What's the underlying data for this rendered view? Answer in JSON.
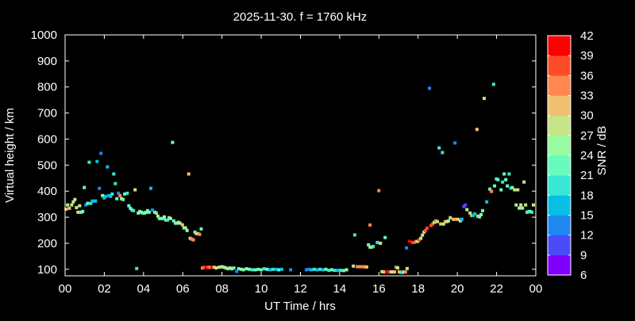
{
  "chart_data": {
    "type": "scatter",
    "title": "2025-11-30. f = 1760 kHz",
    "xlabel": "UT Time / hrs",
    "ylabel": "Virtual height / km",
    "xlim": [
      0,
      24
    ],
    "ylim": [
      75,
      1000
    ],
    "x_ticks": [
      "00",
      "02",
      "04",
      "06",
      "08",
      "10",
      "12",
      "14",
      "16",
      "18",
      "20",
      "22",
      "00"
    ],
    "x_tick_values": [
      0,
      2,
      4,
      6,
      8,
      10,
      12,
      14,
      16,
      18,
      20,
      22,
      24
    ],
    "y_ticks": [
      100,
      200,
      300,
      400,
      500,
      600,
      700,
      800,
      900,
      1000
    ],
    "grid": false,
    "background": "#000000",
    "colorbar": {
      "label": "SNR / dB",
      "ticks": [
        6,
        9,
        12,
        15,
        18,
        21,
        24,
        27,
        30,
        33,
        36,
        39,
        42
      ],
      "colors": [
        "#7f00ff",
        "#4b4bfa",
        "#1e88f0",
        "#08c0e4",
        "#38e8d4",
        "#68fcbc",
        "#98fca0",
        "#c8e488",
        "#f0c070",
        "#ff8850",
        "#ff4c28",
        "#ff0000"
      ]
    },
    "point_fields": [
      "time_hrs",
      "height_km",
      "snr_db"
    ],
    "points": [
      [
        0.05,
        331,
        31
      ],
      [
        0.13,
        347,
        28
      ],
      [
        0.22,
        334,
        31
      ],
      [
        0.34,
        347,
        28
      ],
      [
        0.42,
        359,
        27
      ],
      [
        0.5,
        368,
        28
      ],
      [
        0.58,
        337,
        27
      ],
      [
        0.66,
        319,
        28
      ],
      [
        0.74,
        344,
        27
      ],
      [
        0.82,
        319,
        24
      ],
      [
        0.9,
        322,
        22
      ],
      [
        0.98,
        414,
        21
      ],
      [
        1.06,
        347,
        12
      ],
      [
        1.15,
        353,
        21
      ],
      [
        1.23,
        511,
        20
      ],
      [
        1.31,
        353,
        19
      ],
      [
        1.39,
        362,
        17
      ],
      [
        1.47,
        362,
        17
      ],
      [
        1.55,
        362,
        17
      ],
      [
        1.63,
        514,
        16
      ],
      [
        1.75,
        411,
        13
      ],
      [
        1.83,
        545,
        13
      ],
      [
        1.91,
        383,
        24
      ],
      [
        1.99,
        374,
        17
      ],
      [
        2.07,
        380,
        17
      ],
      [
        2.16,
        493,
        15
      ],
      [
        2.24,
        383,
        17
      ],
      [
        2.32,
        380,
        16
      ],
      [
        2.4,
        389,
        19
      ],
      [
        2.48,
        466,
        19
      ],
      [
        2.56,
        429,
        19
      ],
      [
        2.64,
        371,
        22
      ],
      [
        2.72,
        392,
        13
      ],
      [
        2.8,
        383,
        34
      ],
      [
        2.88,
        371,
        24
      ],
      [
        2.96,
        368,
        22
      ],
      [
        3.04,
        389,
        21
      ],
      [
        3.17,
        392,
        19
      ],
      [
        3.25,
        344,
        22
      ],
      [
        3.33,
        334,
        22
      ],
      [
        3.41,
        328,
        22
      ],
      [
        3.49,
        325,
        19
      ],
      [
        3.57,
        405,
        28
      ],
      [
        3.65,
        103,
        19
      ],
      [
        3.73,
        316,
        24
      ],
      [
        3.81,
        322,
        22
      ],
      [
        3.89,
        319,
        24
      ],
      [
        3.97,
        316,
        22
      ],
      [
        4.05,
        316,
        22
      ],
      [
        4.13,
        319,
        24
      ],
      [
        4.21,
        325,
        22
      ],
      [
        4.29,
        319,
        22
      ],
      [
        4.37,
        411,
        16
      ],
      [
        4.45,
        328,
        12
      ],
      [
        4.57,
        319,
        22
      ],
      [
        4.65,
        316,
        22
      ],
      [
        4.73,
        304,
        27
      ],
      [
        4.81,
        295,
        22
      ],
      [
        4.9,
        295,
        22
      ],
      [
        4.98,
        295,
        22
      ],
      [
        5.06,
        301,
        24
      ],
      [
        5.14,
        289,
        22
      ],
      [
        5.22,
        289,
        19
      ],
      [
        5.3,
        298,
        22
      ],
      [
        5.38,
        295,
        27
      ],
      [
        5.48,
        587,
        22
      ],
      [
        5.54,
        286,
        21
      ],
      [
        5.62,
        277,
        22
      ],
      [
        5.7,
        277,
        21
      ],
      [
        5.78,
        280,
        24
      ],
      [
        5.86,
        277,
        27
      ],
      [
        5.98,
        271,
        31
      ],
      [
        6.06,
        259,
        24
      ],
      [
        6.14,
        259,
        24
      ],
      [
        6.22,
        249,
        24
      ],
      [
        6.3,
        466,
        31
      ],
      [
        6.38,
        219,
        28
      ],
      [
        6.46,
        216,
        33
      ],
      [
        6.54,
        213,
        34
      ],
      [
        6.62,
        243,
        21
      ],
      [
        6.7,
        237,
        27
      ],
      [
        6.78,
        237,
        30
      ],
      [
        6.86,
        234,
        34
      ],
      [
        6.94,
        255,
        21
      ],
      [
        7.0,
        105,
        34
      ],
      [
        7.1,
        108,
        36
      ],
      [
        7.2,
        108,
        39
      ],
      [
        7.3,
        108,
        36
      ],
      [
        7.4,
        108,
        34
      ],
      [
        7.5,
        108,
        39
      ],
      [
        7.6,
        108,
        31
      ],
      [
        7.7,
        105,
        28
      ],
      [
        7.85,
        108,
        27
      ],
      [
        8.0,
        110,
        24
      ],
      [
        8.1,
        108,
        27
      ],
      [
        8.2,
        105,
        24
      ],
      [
        8.3,
        102,
        22
      ],
      [
        8.4,
        105,
        27
      ],
      [
        8.5,
        102,
        24
      ],
      [
        8.6,
        105,
        22
      ],
      [
        8.75,
        92,
        12
      ],
      [
        8.85,
        102,
        21
      ],
      [
        9.0,
        100,
        24
      ],
      [
        9.1,
        98,
        22
      ],
      [
        9.25,
        102,
        24
      ],
      [
        9.4,
        100,
        21
      ],
      [
        9.55,
        98,
        19
      ],
      [
        9.7,
        98,
        21
      ],
      [
        9.85,
        100,
        22
      ],
      [
        10.0,
        98,
        21
      ],
      [
        10.15,
        102,
        19
      ],
      [
        10.3,
        100,
        21
      ],
      [
        10.45,
        98,
        16
      ],
      [
        10.6,
        100,
        19
      ],
      [
        10.75,
        100,
        16
      ],
      [
        10.9,
        98,
        21
      ],
      [
        11.05,
        100,
        16
      ],
      [
        11.5,
        98,
        13
      ],
      [
        12.3,
        98,
        12
      ],
      [
        12.4,
        100,
        13
      ],
      [
        12.55,
        98,
        16
      ],
      [
        12.7,
        100,
        19
      ],
      [
        12.85,
        98,
        16
      ],
      [
        13.0,
        100,
        19
      ],
      [
        13.15,
        98,
        16
      ],
      [
        13.3,
        100,
        21
      ],
      [
        13.45,
        96,
        19
      ],
      [
        13.6,
        98,
        22
      ],
      [
        13.75,
        96,
        19
      ],
      [
        13.9,
        96,
        16
      ],
      [
        14.05,
        96,
        19
      ],
      [
        14.2,
        95,
        21
      ],
      [
        14.35,
        98,
        24
      ],
      [
        14.7,
        112,
        27
      ],
      [
        14.77,
        232,
        19
      ],
      [
        14.9,
        110,
        34
      ],
      [
        15.05,
        110,
        33
      ],
      [
        15.2,
        110,
        34
      ],
      [
        15.3,
        109,
        34
      ],
      [
        15.38,
        109,
        31
      ],
      [
        15.47,
        194,
        21
      ],
      [
        15.55,
        270,
        34
      ],
      [
        15.55,
        185,
        28
      ],
      [
        15.63,
        185,
        24
      ],
      [
        15.71,
        188,
        19
      ],
      [
        15.92,
        203,
        19
      ],
      [
        16.0,
        402,
        34
      ],
      [
        16.08,
        200,
        28
      ],
      [
        16.32,
        222,
        22
      ],
      [
        16.16,
        91,
        28
      ],
      [
        16.24,
        90,
        31
      ],
      [
        16.4,
        90,
        40
      ],
      [
        16.48,
        90,
        40
      ],
      [
        16.56,
        90,
        36
      ],
      [
        16.64,
        90,
        28
      ],
      [
        16.72,
        90,
        28
      ],
      [
        16.8,
        90,
        31
      ],
      [
        16.88,
        108,
        33
      ],
      [
        16.96,
        105,
        28
      ],
      [
        17.04,
        90,
        31
      ],
      [
        17.12,
        88,
        19
      ],
      [
        17.2,
        88,
        19
      ],
      [
        17.28,
        90,
        28
      ],
      [
        17.36,
        90,
        34
      ],
      [
        17.44,
        103,
        28
      ],
      [
        17.41,
        182,
        13
      ],
      [
        17.57,
        207,
        41
      ],
      [
        17.73,
        203,
        36
      ],
      [
        17.81,
        203,
        36
      ],
      [
        17.9,
        207,
        33
      ],
      [
        17.98,
        207,
        27
      ],
      [
        18.06,
        213,
        36
      ],
      [
        18.14,
        219,
        27
      ],
      [
        18.22,
        231,
        27
      ],
      [
        18.3,
        243,
        28
      ],
      [
        18.38,
        249,
        36
      ],
      [
        18.46,
        258,
        36
      ],
      [
        18.58,
        795,
        13
      ],
      [
        18.66,
        268,
        36
      ],
      [
        18.74,
        274,
        38
      ],
      [
        18.82,
        280,
        24
      ],
      [
        18.9,
        286,
        34
      ],
      [
        18.98,
        283,
        28
      ],
      [
        19.07,
        566,
        19
      ],
      [
        19.15,
        274,
        31
      ],
      [
        19.24,
        548,
        19
      ],
      [
        19.3,
        274,
        27
      ],
      [
        19.39,
        283,
        31
      ],
      [
        19.47,
        283,
        27
      ],
      [
        19.55,
        286,
        24
      ],
      [
        19.64,
        298,
        27
      ],
      [
        19.8,
        292,
        31
      ],
      [
        19.88,
        585,
        13
      ],
      [
        19.96,
        292,
        31
      ],
      [
        20.04,
        292,
        31
      ],
      [
        20.15,
        286,
        28
      ],
      [
        20.23,
        292,
        16
      ],
      [
        20.33,
        341,
        9
      ],
      [
        20.41,
        347,
        10
      ],
      [
        20.49,
        329,
        28
      ],
      [
        20.65,
        316,
        28
      ],
      [
        20.73,
        307,
        28
      ],
      [
        20.81,
        307,
        16
      ],
      [
        20.89,
        313,
        16
      ],
      [
        21.0,
        637,
        31
      ],
      [
        21.05,
        304,
        27
      ],
      [
        21.13,
        301,
        22
      ],
      [
        21.21,
        310,
        24
      ],
      [
        21.29,
        325,
        22
      ],
      [
        21.37,
        756,
        27
      ],
      [
        21.5,
        359,
        15
      ],
      [
        21.66,
        408,
        21
      ],
      [
        21.74,
        399,
        34
      ],
      [
        21.85,
        810,
        19
      ],
      [
        21.9,
        420,
        22
      ],
      [
        21.99,
        447,
        19
      ],
      [
        22.07,
        444,
        21
      ],
      [
        22.23,
        405,
        22
      ],
      [
        22.31,
        435,
        19
      ],
      [
        22.39,
        466,
        22
      ],
      [
        22.47,
        444,
        21
      ],
      [
        22.55,
        420,
        22
      ],
      [
        22.64,
        466,
        18
      ],
      [
        22.72,
        411,
        17
      ],
      [
        22.8,
        414,
        22
      ],
      [
        22.92,
        405,
        27
      ],
      [
        23.0,
        347,
        27
      ],
      [
        23.08,
        405,
        27
      ],
      [
        23.16,
        335,
        24
      ],
      [
        23.24,
        347,
        27
      ],
      [
        23.32,
        335,
        24
      ],
      [
        23.4,
        435,
        27
      ],
      [
        23.48,
        347,
        27
      ],
      [
        23.56,
        319,
        22
      ],
      [
        23.64,
        322,
        19
      ],
      [
        23.72,
        322,
        22
      ],
      [
        23.8,
        319,
        19
      ],
      [
        23.88,
        347,
        27
      ]
    ]
  }
}
